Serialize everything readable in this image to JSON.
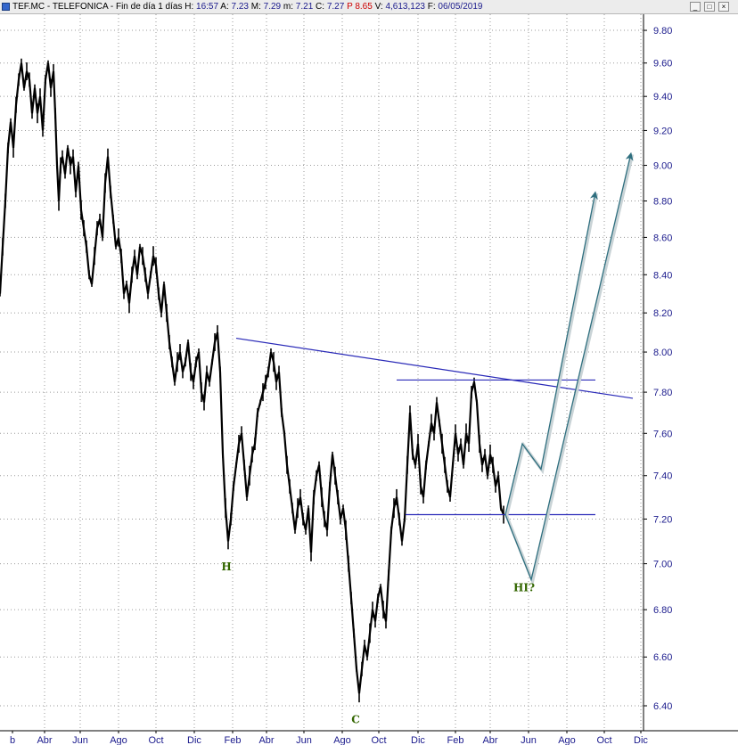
{
  "window": {
    "symbol": "TEF.MC",
    "name": "TELEFONICA",
    "period": "Fin de día 1 días",
    "fields": [
      {
        "key": "H:",
        "value": "16:57"
      },
      {
        "key": "A:",
        "value": "7.23"
      },
      {
        "key": "M:",
        "value": "7.29"
      },
      {
        "key": "m:",
        "value": "7.21"
      },
      {
        "key": "C:",
        "value": "7.27"
      },
      {
        "key": "P",
        "value": "8.65",
        "color": "#cc0000"
      },
      {
        "key": "V:",
        "value": "4,613,123"
      },
      {
        "key": "F:",
        "value": "06/05/2019"
      }
    ],
    "buttons": {
      "minimize": "_",
      "maximize": "□",
      "close": "×"
    }
  },
  "chart_data": {
    "type": "line",
    "y_axis": {
      "side": "right",
      "scale": "log",
      "min": 6.3,
      "max": 9.9,
      "ticks": [
        "6.40",
        "6.60",
        "6.80",
        "7.00",
        "7.20",
        "7.40",
        "7.60",
        "7.80",
        "8.00",
        "8.20",
        "8.40",
        "8.60",
        "8.80",
        "9.00",
        "9.20",
        "9.40",
        "9.60",
        "9.80"
      ]
    },
    "x_axis": {
      "ticks": [
        "b",
        "Abr",
        "Jun",
        "Ago",
        "Oct",
        "Dic",
        "Feb",
        "Abr",
        "Jun",
        "Ago",
        "Oct",
        "Dic",
        "Feb",
        "Abr",
        "Jun",
        "Ago",
        "Oct",
        "Dic"
      ]
    },
    "grid": true,
    "series": [
      {
        "color": "#000000",
        "points": [
          [
            0,
            8.3
          ],
          [
            3,
            8.55
          ],
          [
            6,
            8.8
          ],
          [
            9,
            9.1
          ],
          [
            12,
            9.25
          ],
          [
            15,
            9.1
          ],
          [
            18,
            9.35
          ],
          [
            21,
            9.5
          ],
          [
            24,
            9.6
          ],
          [
            27,
            9.45
          ],
          [
            30,
            9.55
          ],
          [
            33,
            9.5
          ],
          [
            36,
            9.3
          ],
          [
            39,
            9.45
          ],
          [
            42,
            9.3
          ],
          [
            45,
            9.4
          ],
          [
            48,
            9.2
          ],
          [
            51,
            9.5
          ],
          [
            54,
            9.6
          ],
          [
            57,
            9.45
          ],
          [
            60,
            9.55
          ],
          [
            62,
            9.3
          ],
          [
            64,
            9.0
          ],
          [
            66,
            8.8
          ],
          [
            68,
            9.0
          ],
          [
            70,
            9.05
          ],
          [
            73,
            8.95
          ],
          [
            76,
            9.1
          ],
          [
            79,
            9.0
          ],
          [
            82,
            9.05
          ],
          [
            85,
            8.85
          ],
          [
            88,
            9.0
          ],
          [
            91,
            8.75
          ],
          [
            94,
            8.65
          ],
          [
            97,
            8.55
          ],
          [
            100,
            8.4
          ],
          [
            103,
            8.35
          ],
          [
            106,
            8.5
          ],
          [
            109,
            8.65
          ],
          [
            112,
            8.7
          ],
          [
            115,
            8.6
          ],
          [
            118,
            8.9
          ],
          [
            121,
            9.05
          ],
          [
            124,
            8.85
          ],
          [
            127,
            8.7
          ],
          [
            130,
            8.55
          ],
          [
            133,
            8.6
          ],
          [
            136,
            8.5
          ],
          [
            139,
            8.3
          ],
          [
            142,
            8.35
          ],
          [
            145,
            8.25
          ],
          [
            148,
            8.4
          ],
          [
            151,
            8.5
          ],
          [
            154,
            8.4
          ],
          [
            157,
            8.55
          ],
          [
            160,
            8.5
          ],
          [
            163,
            8.4
          ],
          [
            166,
            8.3
          ],
          [
            169,
            8.4
          ],
          [
            172,
            8.5
          ],
          [
            175,
            8.45
          ],
          [
            178,
            8.3
          ],
          [
            181,
            8.2
          ],
          [
            184,
            8.35
          ],
          [
            187,
            8.2
          ],
          [
            190,
            8.05
          ],
          [
            193,
            7.95
          ],
          [
            196,
            7.85
          ],
          [
            199,
            7.95
          ],
          [
            202,
            8.0
          ],
          [
            205,
            7.9
          ],
          [
            208,
            7.95
          ],
          [
            211,
            8.05
          ],
          [
            214,
            7.9
          ],
          [
            217,
            7.85
          ],
          [
            220,
            7.95
          ],
          [
            223,
            8.0
          ],
          [
            226,
            7.8
          ],
          [
            229,
            7.75
          ],
          [
            232,
            7.9
          ],
          [
            235,
            7.85
          ],
          [
            238,
            7.95
          ],
          [
            241,
            8.05
          ],
          [
            244,
            8.1
          ],
          [
            247,
            7.9
          ],
          [
            250,
            7.5
          ],
          [
            253,
            7.25
          ],
          [
            256,
            7.1
          ],
          [
            259,
            7.2
          ],
          [
            262,
            7.35
          ],
          [
            265,
            7.45
          ],
          [
            268,
            7.55
          ],
          [
            271,
            7.6
          ],
          [
            274,
            7.45
          ],
          [
            277,
            7.3
          ],
          [
            280,
            7.4
          ],
          [
            283,
            7.5
          ],
          [
            286,
            7.55
          ],
          [
            289,
            7.7
          ],
          [
            292,
            7.75
          ],
          [
            295,
            7.8
          ],
          [
            298,
            7.85
          ],
          [
            301,
            7.9
          ],
          [
            304,
            8.0
          ],
          [
            307,
            7.95
          ],
          [
            310,
            7.85
          ],
          [
            313,
            7.9
          ],
          [
            316,
            7.7
          ],
          [
            319,
            7.6
          ],
          [
            322,
            7.45
          ],
          [
            325,
            7.35
          ],
          [
            328,
            7.25
          ],
          [
            331,
            7.15
          ],
          [
            334,
            7.25
          ],
          [
            337,
            7.3
          ],
          [
            340,
            7.2
          ],
          [
            343,
            7.15
          ],
          [
            346,
            7.25
          ],
          [
            349,
            7.05
          ],
          [
            352,
            7.3
          ],
          [
            355,
            7.4
          ],
          [
            358,
            7.45
          ],
          [
            361,
            7.3
          ],
          [
            364,
            7.2
          ],
          [
            367,
            7.15
          ],
          [
            370,
            7.35
          ],
          [
            373,
            7.5
          ],
          [
            376,
            7.4
          ],
          [
            379,
            7.3
          ],
          [
            382,
            7.2
          ],
          [
            385,
            7.25
          ],
          [
            388,
            7.15
          ],
          [
            391,
            7.0
          ],
          [
            394,
            6.85
          ],
          [
            397,
            6.7
          ],
          [
            400,
            6.55
          ],
          [
            403,
            6.45
          ],
          [
            406,
            6.55
          ],
          [
            409,
            6.65
          ],
          [
            412,
            6.6
          ],
          [
            415,
            6.7
          ],
          [
            418,
            6.8
          ],
          [
            421,
            6.75
          ],
          [
            424,
            6.85
          ],
          [
            427,
            6.9
          ],
          [
            430,
            6.8
          ],
          [
            433,
            6.75
          ],
          [
            436,
            6.95
          ],
          [
            439,
            7.15
          ],
          [
            442,
            7.25
          ],
          [
            445,
            7.3
          ],
          [
            448,
            7.2
          ],
          [
            451,
            7.1
          ],
          [
            454,
            7.2
          ],
          [
            457,
            7.45
          ],
          [
            460,
            7.7
          ],
          [
            463,
            7.5
          ],
          [
            466,
            7.45
          ],
          [
            469,
            7.55
          ],
          [
            472,
            7.35
          ],
          [
            475,
            7.3
          ],
          [
            478,
            7.45
          ],
          [
            481,
            7.55
          ],
          [
            484,
            7.65
          ],
          [
            487,
            7.6
          ],
          [
            490,
            7.75
          ],
          [
            493,
            7.65
          ],
          [
            496,
            7.55
          ],
          [
            499,
            7.45
          ],
          [
            502,
            7.35
          ],
          [
            505,
            7.3
          ],
          [
            508,
            7.45
          ],
          [
            511,
            7.6
          ],
          [
            514,
            7.5
          ],
          [
            517,
            7.55
          ],
          [
            520,
            7.45
          ],
          [
            523,
            7.6
          ],
          [
            526,
            7.55
          ],
          [
            529,
            7.8
          ],
          [
            532,
            7.85
          ],
          [
            535,
            7.75
          ],
          [
            538,
            7.55
          ],
          [
            541,
            7.45
          ],
          [
            544,
            7.5
          ],
          [
            547,
            7.4
          ],
          [
            550,
            7.5
          ],
          [
            553,
            7.45
          ],
          [
            556,
            7.35
          ],
          [
            559,
            7.4
          ],
          [
            562,
            7.25
          ],
          [
            565,
            7.22
          ]
        ]
      }
    ],
    "annotations": [
      {
        "text": "H",
        "x": 254,
        "y": 6.97,
        "color": "#336600"
      },
      {
        "text": "C",
        "x": 399,
        "y": 6.33,
        "color": "#336600"
      },
      {
        "text": "HI?",
        "x": 588,
        "y": 6.88,
        "color": "#336600"
      }
    ],
    "trendlines": [
      {
        "from": [
          265,
          8.07
        ],
        "to": [
          710,
          7.77
        ],
        "color": "#2a2ab8"
      },
      {
        "from": [
          445,
          7.86
        ],
        "to": [
          668,
          7.86
        ],
        "color": "#2a2ab8"
      },
      {
        "from": [
          455,
          7.22
        ],
        "to": [
          668,
          7.22
        ],
        "color": "#2a2ab8"
      }
    ],
    "projections": [
      {
        "points": [
          [
            567,
            7.22
          ],
          [
            586,
            7.55
          ],
          [
            607,
            7.43
          ],
          [
            668,
            8.85
          ]
        ],
        "color": "#2f6f7f"
      },
      {
        "points": [
          [
            567,
            7.22
          ],
          [
            596,
            6.93
          ],
          [
            708,
            9.07
          ]
        ],
        "color": "#2f6f7f"
      }
    ]
  }
}
